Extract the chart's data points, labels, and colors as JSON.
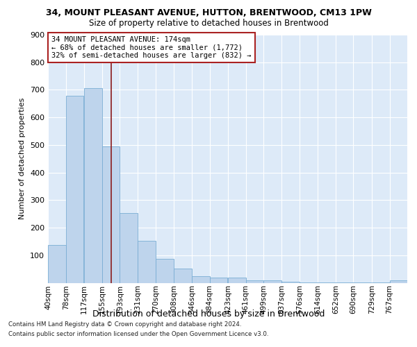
{
  "title1": "34, MOUNT PLEASANT AVENUE, HUTTON, BRENTWOOD, CM13 1PW",
  "title2": "Size of property relative to detached houses in Brentwood",
  "xlabel": "Distribution of detached houses by size in Brentwood",
  "ylabel": "Number of detached properties",
  "bar_color": "#bed4ec",
  "bar_edge_color": "#7aadd4",
  "annotation_line_color": "#8b1a1a",
  "annotation_box_color": "#ffffff",
  "annotation_box_edge": "#aa2222",
  "annotation_text": "34 MOUNT PLEASANT AVENUE: 174sqm\n← 68% of detached houses are smaller (1,772)\n32% of semi-detached houses are larger (832) →",
  "subject_size": 174,
  "footnote1": "Contains HM Land Registry data © Crown copyright and database right 2024.",
  "footnote2": "Contains public sector information licensed under the Open Government Licence v3.0.",
  "bins": [
    40,
    78,
    117,
    155,
    193,
    231,
    270,
    308,
    346,
    384,
    423,
    461,
    499,
    537,
    576,
    614,
    652,
    690,
    729,
    767,
    805
  ],
  "counts": [
    137,
    678,
    705,
    495,
    253,
    153,
    87,
    52,
    25,
    20,
    18,
    10,
    10,
    5,
    2,
    2,
    2,
    2,
    2,
    10
  ],
  "ylim": [
    0,
    900
  ],
  "yticks": [
    0,
    100,
    200,
    300,
    400,
    500,
    600,
    700,
    800,
    900
  ],
  "background_color": "#ddeaf8",
  "grid_color": "#ffffff"
}
